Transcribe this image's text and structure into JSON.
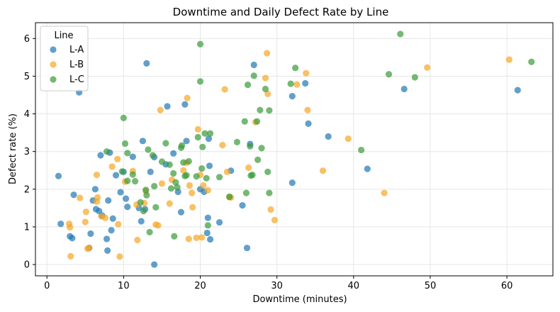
{
  "chart_data": {
    "type": "scatter",
    "title": "Downtime and Daily Defect Rate by Line",
    "xlabel": "Downtime (minutes)",
    "ylabel": "Defect rate (%)",
    "xlim": [
      -1.5,
      66
    ],
    "ylim": [
      -0.3,
      6.42
    ],
    "xticks": [
      0,
      10,
      20,
      30,
      40,
      50,
      60
    ],
    "yticks": [
      0,
      1,
      2,
      3,
      4,
      5,
      6
    ],
    "grid": true,
    "legend": {
      "title": "Line",
      "placement": "top-left"
    },
    "series": [
      {
        "name": "L-A",
        "color": "#1f77b4",
        "points": [
          [
            1.5,
            2.35
          ],
          [
            1.8,
            1.08
          ],
          [
            3.0,
            0.75
          ],
          [
            3.3,
            0.7
          ],
          [
            3.5,
            1.85
          ],
          [
            4.2,
            4.57
          ],
          [
            5.5,
            0.44
          ],
          [
            5.7,
            0.82
          ],
          [
            6.0,
            1.7
          ],
          [
            6.3,
            2.0
          ],
          [
            6.4,
            1.47
          ],
          [
            6.8,
            1.42
          ],
          [
            7.0,
            2.9
          ],
          [
            7.2,
            1.3
          ],
          [
            7.8,
            0.68
          ],
          [
            7.9,
            0.37
          ],
          [
            8.0,
            1.7
          ],
          [
            8.2,
            2.97
          ],
          [
            8.4,
            0.91
          ],
          [
            8.6,
            1.22
          ],
          [
            9.0,
            2.37
          ],
          [
            9.6,
            1.92
          ],
          [
            10.0,
            2.46
          ],
          [
            10.3,
            1.75
          ],
          [
            10.5,
            1.53
          ],
          [
            11.2,
            2.86
          ],
          [
            12.0,
            1.5
          ],
          [
            12.3,
            1.15
          ],
          [
            12.5,
            3.28
          ],
          [
            12.8,
            1.47
          ],
          [
            13.0,
            5.34
          ],
          [
            13.5,
            2.46
          ],
          [
            14.0,
            2.85
          ],
          [
            14.0,
            0.0
          ],
          [
            15.5,
            2.66
          ],
          [
            15.7,
            4.2
          ],
          [
            16.5,
            2.95
          ],
          [
            17.1,
            1.93
          ],
          [
            17.5,
            1.39
          ],
          [
            18.0,
            4.25
          ],
          [
            18.2,
            3.28
          ],
          [
            20.0,
            2.0
          ],
          [
            20.5,
            1.93
          ],
          [
            20.9,
            0.84
          ],
          [
            21.0,
            1.24
          ],
          [
            21.1,
            3.34
          ],
          [
            21.2,
            2.62
          ],
          [
            21.3,
            0.67
          ],
          [
            22.5,
            1.12
          ],
          [
            24.0,
            2.49
          ],
          [
            25.5,
            1.57
          ],
          [
            26.1,
            0.44
          ],
          [
            26.5,
            3.2
          ],
          [
            27.0,
            5.3
          ],
          [
            32.0,
            2.17
          ],
          [
            32.0,
            4.47
          ],
          [
            33.7,
            4.81
          ],
          [
            34.1,
            3.74
          ],
          [
            36.7,
            3.4
          ],
          [
            41.8,
            2.54
          ],
          [
            46.6,
            4.66
          ],
          [
            61.4,
            4.63
          ]
        ]
      },
      {
        "name": "L-B",
        "color": "#f5a623",
        "points": [
          [
            2.9,
            1.08
          ],
          [
            3.0,
            0.99
          ],
          [
            3.1,
            0.22
          ],
          [
            4.3,
            1.77
          ],
          [
            5.0,
            1.13
          ],
          [
            5.1,
            1.4
          ],
          [
            5.3,
            0.42
          ],
          [
            5.5,
            0.44
          ],
          [
            6.5,
            1.67
          ],
          [
            6.6,
            1.78
          ],
          [
            6.5,
            2.38
          ],
          [
            7.1,
            1.28
          ],
          [
            7.6,
            1.24
          ],
          [
            8.5,
            2.6
          ],
          [
            9.2,
            2.8
          ],
          [
            9.3,
            1.07
          ],
          [
            9.5,
            0.21
          ],
          [
            10.2,
            2.2
          ],
          [
            11.2,
            2.48
          ],
          [
            11.7,
            1.59
          ],
          [
            11.8,
            0.65
          ],
          [
            12.7,
            1.63
          ],
          [
            12.9,
            1.95
          ],
          [
            14.2,
            1.06
          ],
          [
            14.5,
            1.04
          ],
          [
            14.8,
            4.1
          ],
          [
            15.0,
            2.15
          ],
          [
            16.0,
            1.62
          ],
          [
            16.3,
            2.25
          ],
          [
            17.8,
            2.5
          ],
          [
            18.2,
            2.7
          ],
          [
            18.3,
            4.42
          ],
          [
            18.5,
            0.68
          ],
          [
            18.6,
            2.1
          ],
          [
            18.9,
            1.9
          ],
          [
            19.0,
            1.52
          ],
          [
            19.5,
            0.71
          ],
          [
            19.7,
            3.59
          ],
          [
            20.0,
            2.38
          ],
          [
            20.2,
            0.72
          ],
          [
            20.4,
            2.1
          ],
          [
            21.0,
            1.97
          ],
          [
            22.9,
            3.17
          ],
          [
            23.2,
            4.65
          ],
          [
            23.5,
            2.46
          ],
          [
            23.8,
            1.79
          ],
          [
            24.0,
            1.78
          ],
          [
            26.3,
            2.57
          ],
          [
            27.2,
            3.78
          ],
          [
            28.5,
            4.95
          ],
          [
            28.7,
            5.61
          ],
          [
            28.8,
            4.53
          ],
          [
            29.2,
            1.46
          ],
          [
            29.7,
            1.18
          ],
          [
            32.6,
            4.78
          ],
          [
            33.8,
            5.08
          ],
          [
            34.0,
            4.1
          ],
          [
            36.0,
            2.49
          ],
          [
            39.3,
            3.34
          ],
          [
            44.0,
            1.9
          ],
          [
            49.6,
            5.23
          ],
          [
            60.3,
            5.44
          ]
        ]
      },
      {
        "name": "L-C",
        "color": "#3a9a3a",
        "points": [
          [
            7.8,
            3.0
          ],
          [
            9.8,
            2.47
          ],
          [
            10.0,
            3.89
          ],
          [
            10.2,
            3.21
          ],
          [
            10.5,
            2.96
          ],
          [
            10.5,
            2.22
          ],
          [
            11.2,
            2.39
          ],
          [
            11.5,
            2.21
          ],
          [
            12.2,
            1.65
          ],
          [
            12.6,
            1.42
          ],
          [
            12.9,
            1.98
          ],
          [
            13.0,
            1.84
          ],
          [
            13.2,
            3.05
          ],
          [
            13.4,
            0.86
          ],
          [
            13.8,
            2.9
          ],
          [
            14.0,
            2.08
          ],
          [
            14.2,
            1.52
          ],
          [
            15.0,
            2.73
          ],
          [
            15.5,
            3.22
          ],
          [
            16.0,
            2.65
          ],
          [
            16.2,
            2.02
          ],
          [
            16.5,
            2.42
          ],
          [
            16.6,
            0.75
          ],
          [
            16.8,
            2.18
          ],
          [
            17.0,
            2.05
          ],
          [
            17.5,
            3.1
          ],
          [
            17.6,
            3.16
          ],
          [
            17.8,
            2.71
          ],
          [
            18.0,
            2.35
          ],
          [
            18.2,
            2.37
          ],
          [
            18.5,
            2.74
          ],
          [
            19.5,
            2.34
          ],
          [
            19.7,
            3.38
          ],
          [
            20.0,
            4.86
          ],
          [
            20.0,
            5.85
          ],
          [
            20.2,
            2.55
          ],
          [
            20.3,
            3.12
          ],
          [
            20.6,
            3.48
          ],
          [
            20.8,
            2.29
          ],
          [
            21.0,
            1.04
          ],
          [
            21.3,
            3.48
          ],
          [
            22.5,
            2.32
          ],
          [
            23.8,
            1.8
          ],
          [
            24.8,
            3.25
          ],
          [
            25.8,
            3.8
          ],
          [
            26.0,
            1.9
          ],
          [
            26.2,
            4.77
          ],
          [
            26.5,
            3.14
          ],
          [
            26.6,
            2.36
          ],
          [
            26.8,
            2.38
          ],
          [
            27.0,
            5.01
          ],
          [
            27.4,
            3.8
          ],
          [
            27.5,
            2.78
          ],
          [
            27.8,
            4.1
          ],
          [
            28.0,
            3.09
          ],
          [
            28.5,
            4.66
          ],
          [
            28.8,
            2.46
          ],
          [
            29.0,
            4.09
          ],
          [
            29.0,
            1.9
          ],
          [
            31.8,
            4.8
          ],
          [
            32.4,
            5.22
          ],
          [
            41.0,
            3.04
          ],
          [
            44.6,
            5.05
          ],
          [
            48.0,
            4.97
          ],
          [
            46.1,
            6.12
          ],
          [
            63.2,
            5.38
          ]
        ]
      }
    ]
  }
}
